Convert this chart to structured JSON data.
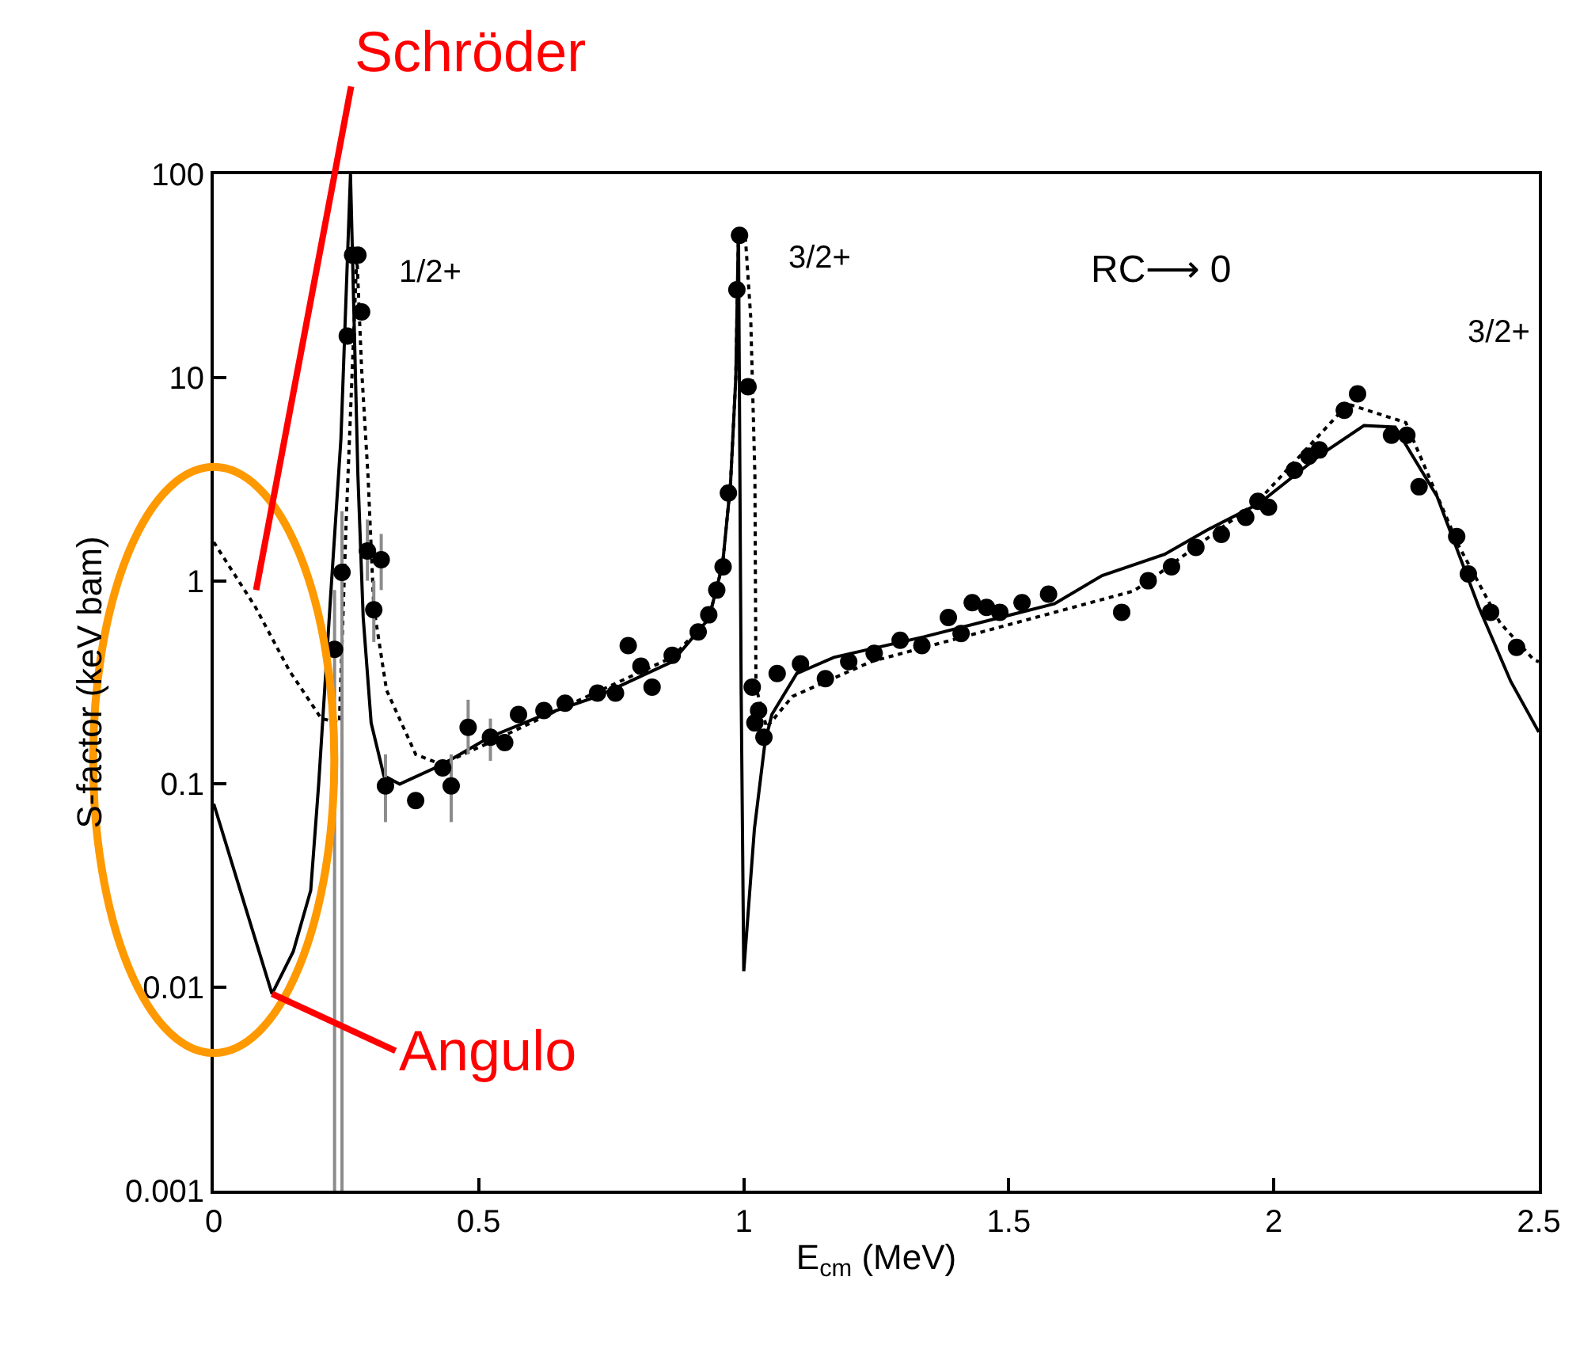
{
  "chart_data": {
    "type": "scatter",
    "xlabel": "E$_{cm}$ (MeV)",
    "ylabel": "S-factor (keV bam)",
    "xlim": [
      0,
      2.5
    ],
    "xticks": [
      0,
      0.5,
      1,
      1.5,
      2,
      2.5
    ],
    "ylim": [
      0.001,
      100
    ],
    "yticks": [
      0.001,
      0.01,
      0.1,
      1,
      10,
      100
    ],
    "log": "y",
    "series": [
      {
        "type": "line",
        "color": "#000000",
        "line_style": "solid",
        "marker": "none",
        "x": [
          0,
          0.05,
          0.11,
          0.15,
          0.183,
          0.198,
          0.22,
          0.24,
          0.258,
          0.272,
          0.282,
          0.297,
          0.321,
          0.351,
          0.432,
          0.52,
          0.625,
          0.724,
          0.865,
          0.934,
          0.96,
          0.975,
          0.985,
          0.99,
          0.995,
          1.0,
          1.02,
          1.04,
          1.053,
          1.1,
          1.17,
          1.34,
          1.586,
          1.676,
          1.794,
          1.873,
          1.972,
          2.09,
          2.17,
          2.229,
          2.308,
          2.387,
          2.447,
          2.5
        ],
        "values": [
          0.08,
          0.03,
          0.0093,
          0.015,
          0.03,
          0.1,
          0.8,
          5,
          100,
          3.3,
          0.66,
          0.2,
          0.11,
          0.1,
          0.125,
          0.17,
          0.22,
          0.27,
          0.4,
          0.65,
          1.2,
          3,
          10,
          54,
          0.3,
          0.012,
          0.06,
          0.16,
          0.22,
          0.35,
          0.42,
          0.53,
          0.77,
          1.06,
          1.35,
          1.77,
          2.4,
          4.2,
          5.8,
          5.7,
          2.6,
          0.74,
          0.32,
          0.18
        ]
      },
      {
        "type": "line",
        "color": "#000000",
        "line_style": "dotted",
        "marker": "none",
        "x": [
          0,
          0.079,
          0.143,
          0.203,
          0.237,
          0.25,
          0.27,
          0.279,
          0.291,
          0.302,
          0.326,
          0.381,
          0.429,
          0.52,
          0.677,
          0.865,
          0.934,
          0.96,
          0.975,
          0.985,
          0.99,
          1.003,
          1.013,
          1.021,
          1.023,
          1.043,
          1.092,
          1.24,
          1.438,
          1.735,
          1.765,
          1.97,
          2.14,
          2.249,
          2.348,
          2.427,
          2.49,
          2.5
        ],
        "values": [
          1.55,
          0.74,
          0.36,
          0.21,
          0.2,
          2,
          40,
          11,
          3.3,
          0.74,
          0.29,
          0.14,
          0.125,
          0.16,
          0.25,
          0.42,
          0.65,
          1.2,
          3,
          10,
          50,
          49,
          20,
          3.3,
          0.3,
          0.19,
          0.27,
          0.4,
          0.55,
          0.89,
          1.0,
          2.46,
          7.4,
          6.0,
          1.5,
          0.62,
          0.41,
          0.4
        ]
      },
      {
        "color": "#000000",
        "marker": "circle",
        "x": [
          0.228,
          0.242,
          0.252,
          0.262,
          0.272,
          0.279,
          0.29,
          0.302,
          0.316,
          0.324,
          0.381,
          0.432,
          0.448,
          0.48,
          0.522,
          0.549,
          0.575,
          0.623,
          0.663,
          0.724,
          0.758,
          0.782,
          0.806,
          0.827,
          0.865,
          0.914,
          0.934,
          0.949,
          0.961,
          0.971,
          0.987,
          0.992,
          1.008,
          1.016,
          1.021,
          1.028,
          1.038,
          1.063,
          1.107,
          1.154,
          1.198,
          1.246,
          1.295,
          1.336,
          1.386,
          1.41,
          1.431,
          1.458,
          1.483,
          1.525,
          1.575,
          1.713,
          1.763,
          1.807,
          1.853,
          1.901,
          1.947,
          1.97,
          1.99,
          2.039,
          2.066,
          2.086,
          2.133,
          2.158,
          2.222,
          2.251,
          2.274,
          2.345,
          2.367,
          2.409,
          2.458
        ],
        "values": [
          0.46,
          1.1,
          16,
          40,
          40,
          21,
          1.4,
          0.72,
          1.27,
          0.098,
          0.083,
          0.12,
          0.098,
          0.19,
          0.17,
          0.16,
          0.22,
          0.23,
          0.25,
          0.28,
          0.28,
          0.48,
          0.38,
          0.3,
          0.43,
          0.56,
          0.68,
          0.9,
          1.17,
          2.7,
          27,
          50,
          9,
          0.3,
          0.2,
          0.23,
          0.17,
          0.35,
          0.39,
          0.33,
          0.4,
          0.44,
          0.51,
          0.48,
          0.66,
          0.55,
          0.78,
          0.74,
          0.7,
          0.78,
          0.86,
          0.7,
          1.0,
          1.17,
          1.46,
          1.69,
          2.05,
          2.46,
          2.3,
          3.5,
          4.1,
          4.4,
          6.9,
          8.3,
          5.2,
          5.2,
          2.9,
          1.65,
          1.08,
          0.7,
          0.47
        ],
        "errors": [
          [
            0.001,
            0.9
          ],
          [
            0.001,
            2.2
          ],
          null,
          null,
          null,
          null,
          [
            1.0,
            2.0
          ],
          [
            0.5,
            1.0
          ],
          [
            0.9,
            1.7
          ],
          [
            0.065,
            0.14
          ],
          null,
          null,
          [
            0.065,
            0.14
          ],
          [
            0.14,
            0.26
          ],
          [
            0.13,
            0.21
          ],
          null,
          null,
          null,
          null,
          null,
          null,
          null,
          null,
          null,
          null,
          null,
          null,
          null,
          null,
          null,
          null,
          null,
          null,
          null,
          null,
          null,
          null,
          null,
          null,
          null,
          null,
          null,
          null,
          null,
          null,
          null,
          null,
          null,
          null,
          null,
          null,
          null,
          null,
          null,
          null,
          null,
          null,
          null,
          null,
          null,
          null,
          null,
          null,
          null,
          null,
          null,
          null,
          null,
          null,
          null,
          null
        ]
      }
    ],
    "annotations": [
      "1/2+",
      "3/2+",
      "RC⟶ 0",
      "3/2+",
      {
        "text": "Schröder",
        "x": 0.08,
        "y": 0.9
      },
      {
        "text": "Angulo",
        "x": 0.11,
        "y": 0.0093
      }
    ]
  }
}
